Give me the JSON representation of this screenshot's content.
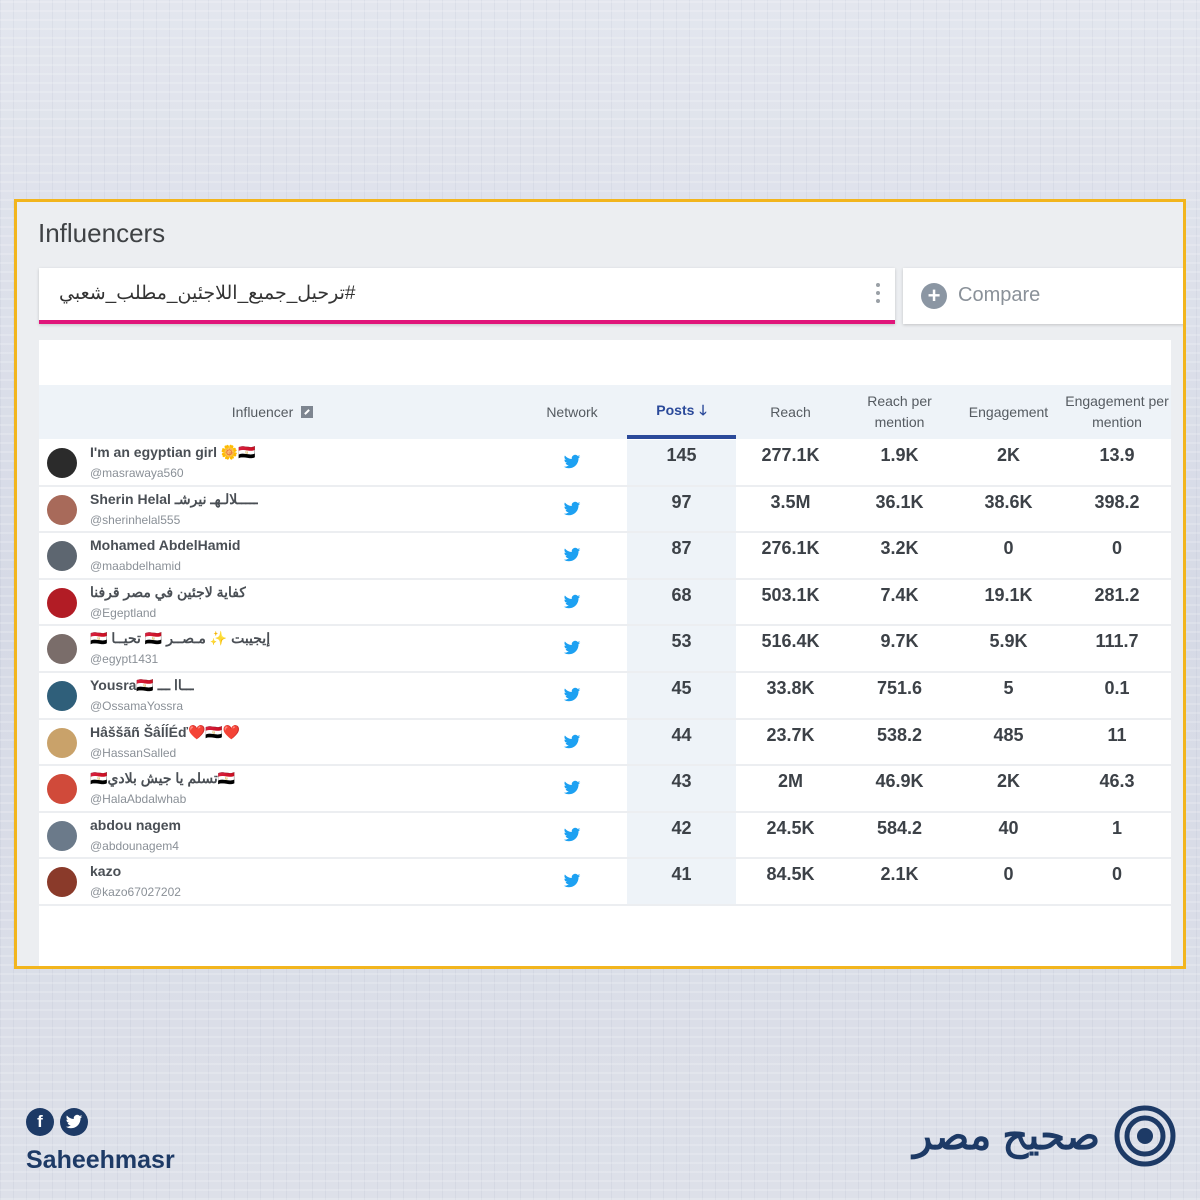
{
  "page": {
    "title": "Influencers"
  },
  "search": {
    "query": "#ترحيل_جميع_اللاجئين_مطلب_شعبي"
  },
  "compare": {
    "label": "Compare"
  },
  "table": {
    "columns": {
      "influencer": "Influencer",
      "network": "Network",
      "posts": "Posts",
      "reach": "Reach",
      "reach_per_mention": "Reach per mention",
      "engagement": "Engagement",
      "engagement_per_mention": "Engagement per mention"
    },
    "rows": [
      {
        "name": "I'm an egyptian girl 🌼🇪🇬",
        "handle": "@masrawaya560",
        "posts": "145",
        "reach": "277.1K",
        "rpm": "1.9K",
        "eng": "2K",
        "epm": "13.9",
        "avatar_color": "#2b2b2b"
      },
      {
        "name": "Sherin Helal ـــــلالـهـ نيرشـ",
        "handle": "@sherinhelal555",
        "posts": "97",
        "reach": "3.5M",
        "rpm": "36.1K",
        "eng": "38.6K",
        "epm": "398.2",
        "avatar_color": "#a86a5a"
      },
      {
        "name": "Mohamed AbdelHamid",
        "handle": "@maabdelhamid",
        "posts": "87",
        "reach": "276.1K",
        "rpm": "3.2K",
        "eng": "0",
        "epm": "0",
        "avatar_color": "#5d6670"
      },
      {
        "name": "كفاية لاجئين في مصر قرفنا",
        "handle": "@Egeptland",
        "posts": "68",
        "reach": "503.1K",
        "rpm": "7.4K",
        "eng": "19.1K",
        "epm": "281.2",
        "avatar_color": "#b21c25"
      },
      {
        "name": "🇪🇬 تحيــا 🇪🇬 إيجيبت ✨ مـصــر",
        "handle": "@egypt1431",
        "posts": "53",
        "reach": "516.4K",
        "rpm": "9.7K",
        "eng": "5.9K",
        "epm": "111.7",
        "avatar_color": "#7a6d6a"
      },
      {
        "name": "Yousra🇪🇬 ـــاا ـــ",
        "handle": "@OssamaYossra",
        "posts": "45",
        "reach": "33.8K",
        "rpm": "751.6",
        "eng": "5",
        "epm": "0.1",
        "avatar_color": "#2f5f7a"
      },
      {
        "name": "Hâššãñ ŠâĺĺÉď❤️🇪🇬❤️",
        "handle": "@HassanSalled",
        "posts": "44",
        "reach": "23.7K",
        "rpm": "538.2",
        "eng": "485",
        "epm": "11",
        "avatar_color": "#c9a26a"
      },
      {
        "name": "🇪🇬تسلم يا جيش بلادي🇪🇬",
        "handle": "@HalaAbdalwhab",
        "posts": "43",
        "reach": "2M",
        "rpm": "46.9K",
        "eng": "2K",
        "epm": "46.3",
        "avatar_color": "#d04a3a"
      },
      {
        "name": "abdou nagem",
        "handle": "@abdounagem4",
        "posts": "42",
        "reach": "24.5K",
        "rpm": "584.2",
        "eng": "40",
        "epm": "1",
        "avatar_color": "#6b7a8a"
      },
      {
        "name": "kazo",
        "handle": "@kazo67027202",
        "posts": "41",
        "reach": "84.5K",
        "rpm": "2.1K",
        "eng": "0",
        "epm": "0",
        "avatar_color": "#8a3a2a"
      }
    ]
  },
  "branding": {
    "handle": "Saheehmasr",
    "arabic": "صحيح مصر",
    "facebook_glyph": "f",
    "accent_color": "#1d3a66"
  },
  "colors": {
    "frame_border": "#f2b51d",
    "search_underline": "#e0157a",
    "posts_active": "#2b4a9a",
    "twitter": "#1da1f2"
  }
}
